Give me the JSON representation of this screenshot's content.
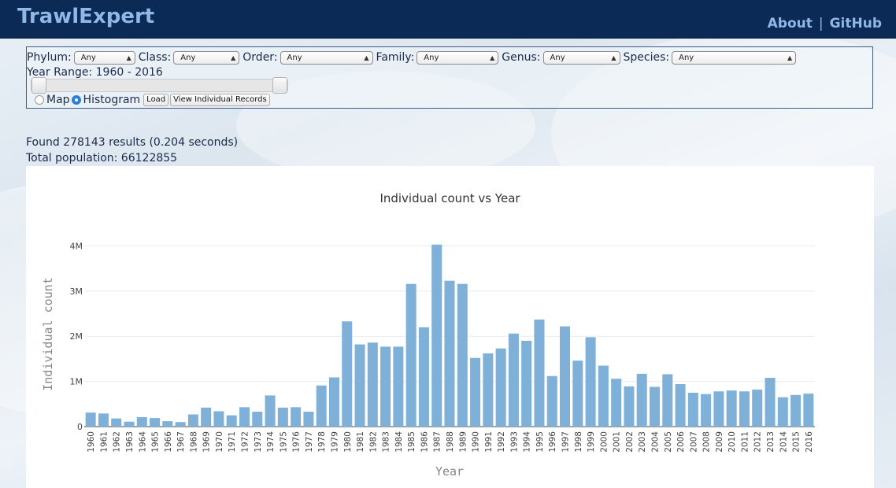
{
  "app": {
    "brand": "TrawlExpert",
    "nav": {
      "about": "About",
      "separator": "|",
      "github": "GitHub"
    }
  },
  "filters": {
    "phylum": {
      "label": "Phylum:",
      "value": "Any"
    },
    "class": {
      "label": "Class:",
      "value": "Any"
    },
    "order": {
      "label": "Order:",
      "value": "Any"
    },
    "family": {
      "label": "Family:",
      "value": "Any"
    },
    "genus": {
      "label": "Genus:",
      "value": "Any"
    },
    "species": {
      "label": "Species:",
      "value": "Any"
    },
    "year_range_label": "Year Range: 1960 - 2016",
    "year_min": 1960,
    "year_max": 2016,
    "view_map_label": "Map",
    "view_histogram_label": "Histogram",
    "selected_view": "Histogram",
    "load_label": "Load",
    "records_label": "View Individual Records"
  },
  "results": {
    "found": "Found 278143 results (0.204 seconds)",
    "population": "Total population: 66122855"
  },
  "chart_data": {
    "type": "bar",
    "title": "Individual count vs Year",
    "xlabel": "Year",
    "ylabel": "Individual count",
    "bar_color": "#7eb0d8",
    "ylim": [
      0,
      4200000
    ],
    "yticks": [
      {
        "value": 0,
        "label": "0"
      },
      {
        "value": 1000000,
        "label": "1M"
      },
      {
        "value": 2000000,
        "label": "2M"
      },
      {
        "value": 3000000,
        "label": "3M"
      },
      {
        "value": 4000000,
        "label": "4M"
      }
    ],
    "categories": [
      "1960",
      "1961",
      "1962",
      "1963",
      "1964",
      "1965",
      "1966",
      "1967",
      "1968",
      "1969",
      "1970",
      "1971",
      "1972",
      "1973",
      "1974",
      "1975",
      "1976",
      "1977",
      "1978",
      "1979",
      "1980",
      "1981",
      "1982",
      "1983",
      "1984",
      "1985",
      "1986",
      "1987",
      "1988",
      "1989",
      "1990",
      "1991",
      "1992",
      "1993",
      "1994",
      "1995",
      "1996",
      "1997",
      "1998",
      "1999",
      "2000",
      "2001",
      "2002",
      "2003",
      "2004",
      "2005",
      "2006",
      "2007",
      "2008",
      "2009",
      "2010",
      "2011",
      "2012",
      "2013",
      "2014",
      "2015",
      "2016"
    ],
    "values": [
      310000,
      290000,
      180000,
      110000,
      210000,
      190000,
      120000,
      100000,
      270000,
      420000,
      340000,
      250000,
      430000,
      330000,
      690000,
      420000,
      430000,
      330000,
      910000,
      1090000,
      2330000,
      1820000,
      1860000,
      1770000,
      1770000,
      3160000,
      2200000,
      4030000,
      3230000,
      3160000,
      1520000,
      1620000,
      1730000,
      2060000,
      1900000,
      2370000,
      1120000,
      2220000,
      1460000,
      1980000,
      1350000,
      1060000,
      890000,
      1170000,
      880000,
      1160000,
      940000,
      750000,
      720000,
      780000,
      800000,
      780000,
      820000,
      1080000,
      650000,
      700000,
      730000
    ]
  }
}
